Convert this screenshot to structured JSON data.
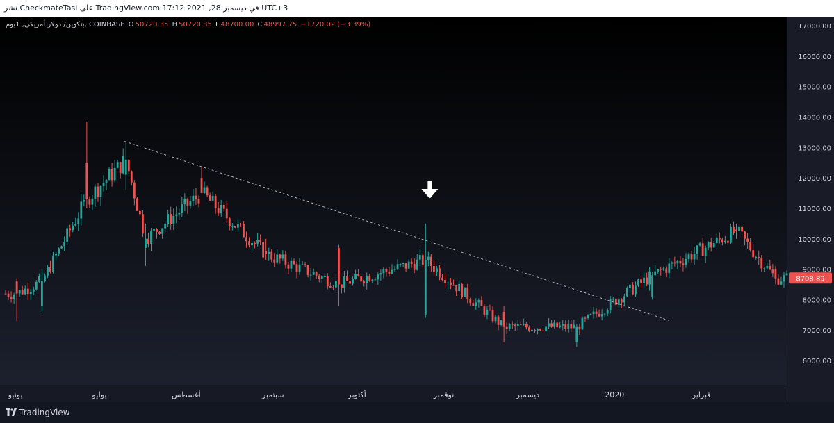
{
  "publication": {
    "text": "نشر CheckmateTasi على TradingView.com 17:12 2021 ,28 في ديسمبر UTC+3"
  },
  "legend": {
    "symbol": "بتكوين/ دولار أمريكي, 1يوم, COINBASE",
    "o_label": "O",
    "o_value": "50720.35",
    "h_label": "H",
    "h_value": "50720.35",
    "l_label": "L",
    "l_value": "48700.00",
    "c_label": "C",
    "c_value": "48997.75",
    "change": "−1720.02 (−3.39%)"
  },
  "footer": {
    "brand": "TradingView",
    "logo_icon": "tradingview-logo-icon"
  },
  "chart_data": {
    "type": "candlestick",
    "title": "",
    "xlabel": "",
    "ylabel": "",
    "ylim": [
      5200,
      17300
    ],
    "y_ticks": [
      "17000.00",
      "16000.00",
      "15000.00",
      "14000.00",
      "13000.00",
      "12000.00",
      "11000.00",
      "10000.00",
      "9000.00",
      "8000.00",
      "7000.00",
      "6000.00"
    ],
    "y_tick_values": [
      17000,
      16000,
      15000,
      14000,
      13000,
      12000,
      11000,
      10000,
      9000,
      8000,
      7000,
      6000
    ],
    "x_labels": [
      "يونيو",
      "يوليو",
      "أغسطس",
      "سبتمبر",
      "أكتوبر",
      "نوفمبر",
      "ديسمبر",
      "2020",
      "فبراير"
    ],
    "last_price": "8708.89",
    "colors": {
      "up": "#26a69a",
      "down": "#ef5350",
      "trendline": "#b2b5be",
      "marker": "#ffffff"
    },
    "trendline": {
      "from": [
        "2019-07-10",
        13200
      ],
      "to": [
        "2020-01-21",
        7300
      ]
    },
    "down_arrow_marker": {
      "date": "2019-10-27",
      "price": 11000
    },
    "key_points": [
      {
        "date": "2019-06-01",
        "open": 8600,
        "high": 8700,
        "low": 7300,
        "close": 8200
      },
      {
        "date": "2019-06-10",
        "open": 7800,
        "high": 9000,
        "low": 7600,
        "close": 8600
      },
      {
        "date": "2019-06-26",
        "open": 12500,
        "high": 13850,
        "low": 11000,
        "close": 11300
      },
      {
        "date": "2019-07-10",
        "open": 12100,
        "high": 13200,
        "low": 11600,
        "close": 12600
      },
      {
        "date": "2019-07-17",
        "open": 9700,
        "high": 10500,
        "low": 9100,
        "close": 10000
      },
      {
        "date": "2019-08-06",
        "open": 12000,
        "high": 12350,
        "low": 11500,
        "close": 11500
      },
      {
        "date": "2019-08-29",
        "open": 9600,
        "high": 10000,
        "low": 9300,
        "close": 9500
      },
      {
        "date": "2019-09-24",
        "open": 9700,
        "high": 9800,
        "low": 7800,
        "close": 8500
      },
      {
        "date": "2019-10-25",
        "open": 7500,
        "high": 10500,
        "low": 7400,
        "close": 9300
      },
      {
        "date": "2019-11-22",
        "open": 7600,
        "high": 7800,
        "low": 6600,
        "close": 7100
      },
      {
        "date": "2019-12-18",
        "open": 6600,
        "high": 7200,
        "low": 6450,
        "close": 7100
      },
      {
        "date": "2020-01-14",
        "open": 8100,
        "high": 8900,
        "low": 8000,
        "close": 8800
      },
      {
        "date": "2020-02-13",
        "open": 10300,
        "high": 10500,
        "low": 10000,
        "close": 10250
      },
      {
        "date": "2020-02-27",
        "open": 9000,
        "high": 9100,
        "low": 8500,
        "close": 8700
      }
    ]
  }
}
